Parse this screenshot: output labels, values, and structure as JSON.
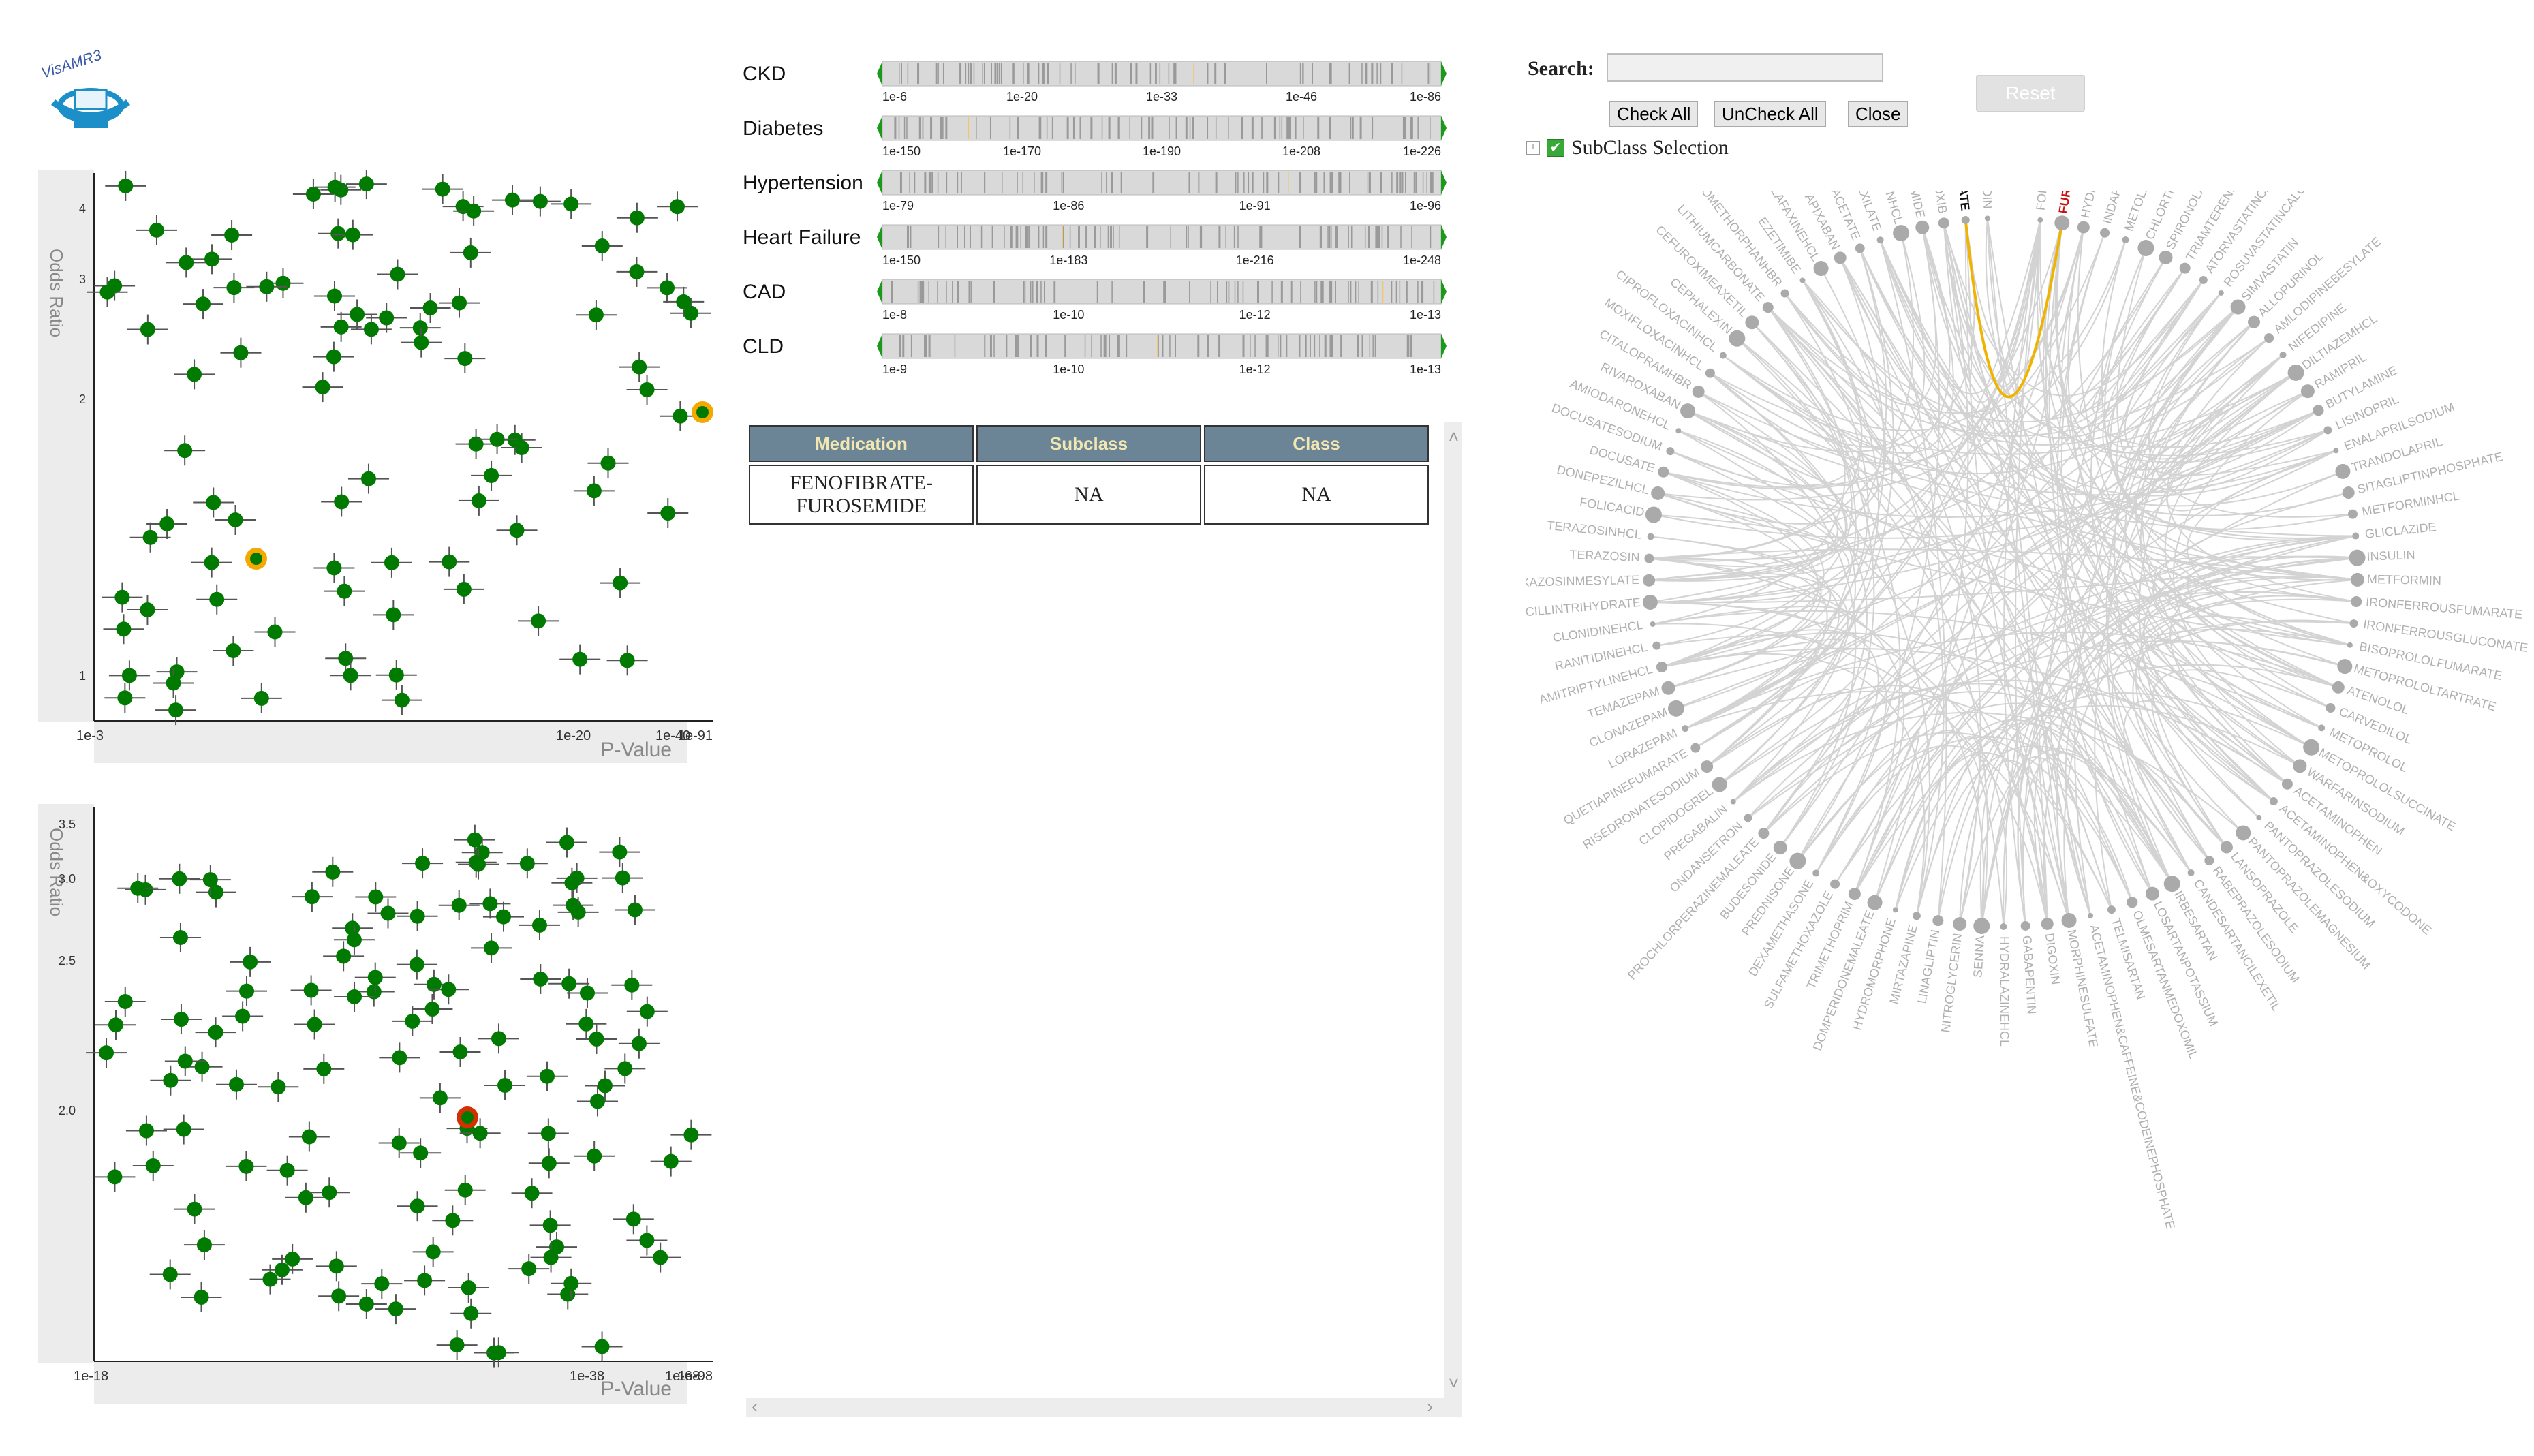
{
  "logo": {
    "text": "VisAMR3"
  },
  "scatter_top": {
    "ylabel": "Odds Ratio",
    "xlabel": "P-Value",
    "yticks": [
      "4",
      "3",
      "2",
      "1"
    ],
    "xticks": [
      "1e-3",
      "1e-20",
      "1e-40",
      "1e-91"
    ],
    "colors": {
      "point": "#007a00",
      "highlight": "#f5a800",
      "error": "#555555"
    }
  },
  "scatter_bottom": {
    "ylabel": "Odds Ratio",
    "xlabel": "P-Value",
    "yticks": [
      "3.5",
      "3.0",
      "2.5",
      "2.0"
    ],
    "xticks": [
      "1e-18",
      "1e-38",
      "1e-68",
      "1e-98"
    ],
    "colors": {
      "point": "#007a00",
      "highlight": "#d23000",
      "error": "#555555"
    }
  },
  "tracks": [
    {
      "label": "CKD",
      "ticks": [
        "1e-6",
        "1e-20",
        "1e-33",
        "1e-46",
        "1e-86"
      ]
    },
    {
      "label": "Diabetes",
      "ticks": [
        "1e-150",
        "1e-170",
        "1e-190",
        "1e-208",
        "1e-226"
      ]
    },
    {
      "label": "Hypertension",
      "ticks": [
        "1e-79",
        "1e-86",
        "1e-91",
        "1e-96"
      ]
    },
    {
      "label": "Heart Failure",
      "ticks": [
        "1e-150",
        "1e-183",
        "1e-216",
        "1e-248"
      ]
    },
    {
      "label": "CAD",
      "ticks": [
        "1e-8",
        "1e-10",
        "1e-12",
        "1e-13"
      ]
    },
    {
      "label": "CLD",
      "ticks": [
        "1e-9",
        "1e-10",
        "1e-12",
        "1e-13"
      ]
    }
  ],
  "table": {
    "headers": [
      "Medication",
      "Subclass",
      "Class"
    ],
    "row": {
      "medication": "FENOFIBRATE-FUROSEMIDE",
      "subclass": "NA",
      "class": "NA"
    }
  },
  "search": {
    "label": "Search:",
    "value": ""
  },
  "buttons": {
    "reset": "Reset",
    "check_all": "Check All",
    "uncheck_all": "UnCheck All",
    "close": "Close"
  },
  "tree": {
    "label": "SubClass Selection"
  },
  "chord": {
    "colors": {
      "link": "#d3d3d3",
      "highlight": "#f0b400",
      "node": "#aaaaaa",
      "label": "#b0b0b0",
      "selected_a": "#111111",
      "selected_b": "#cc1010"
    },
    "selected": [
      "FENOFIBRATE",
      "FUROSEMIDE"
    ],
    "labels": [
      "FORMOTEROLFUMARATE",
      "FUROSEMIDE",
      "HYDROCHLOROTHIAZIDE",
      "INDAPAMIDE",
      "METOLAZONE",
      "CHLORTHALIDONE",
      "SPIRONOLACTONE",
      "TRIAMTERENE",
      "ATORVASTATINCALCIUM",
      "ROSUVASTATINCALCIUM",
      "SIMVASTATIN",
      "ALLOPURINOL",
      "AMLODIPINEBESYLATE",
      "NIFEDIPINE",
      "DILTIAZEMHCL",
      "RAMIPRIL",
      "BUTYLAMINE",
      "LISINOPRIL",
      "ENALAPRILSODIUM",
      "TRANDOLAPRIL",
      "SITAGLIPTINPHOSPHATE",
      "METFORMINHCL",
      "GLICLAZIDE",
      "INSULIN",
      "METFORMIN",
      "IRONFERROUSFUMARATE",
      "IRONFERROUSGLUCONATE",
      "BISOPROLOLFUMARATE",
      "METOPROLOLTARTRATE",
      "ATENOLOL",
      "CARVEDILOL",
      "METOPROLOL",
      "METOPROLOLSUCCINATE",
      "WARFARINSODIUM",
      "ACETAMINOPHEN",
      "ACETAMINOPHEN&OXYCODONE",
      "PANTOPRAZOLESODIUM",
      "PANTOPRAZOLEMAGNESIUM",
      "LANSOPRAZOLE",
      "RABEPRAZOLESODIUM",
      "CANDESARTANCILEXETIL",
      "IRBESARTAN",
      "LOSARTANPOTASSIUM",
      "OLMESARTANMEDOXOMIL",
      "TELMISARTAN",
      "ACETAMINOPHEN&CAFFEINE&CODEINEPHOSPHATE",
      "MORPHINESULFATE",
      "DIGOXIN",
      "GABAPENTIN",
      "HYDRALAZINEHCL",
      "SENNA",
      "NITROGLYCERIN",
      "LINAGLIPTIN",
      "MIRTAZAPINE",
      "HYDROMORPHONE",
      "DOMPERIDONEMALEATE",
      "TRIMETHOPRIM",
      "SULFAMETHOXAZOLE",
      "DEXAMETHASONE",
      "PREDNISONE",
      "BUDESONIDE",
      "PROCHLORPERAZINEMALEATE",
      "ONDANSETRON",
      "PREGABALIN",
      "CLOPIDOGREL",
      "RISEDRONATESODIUM",
      "QUETIAPINEFUMARATE",
      "LORAZEPAM",
      "CLONAZEPAM",
      "TEMAZEPAM",
      "AMITRIPTYLINEHCL",
      "RANITIDINEHCL",
      "CLONIDINEHCL",
      "AMOXICILLINTRIHYDRATE",
      "DOXAZOSINMESYLATE",
      "TERAZOSIN",
      "TERAZOSINHCL",
      "FOLICACID",
      "DONEPEZILHCL",
      "DOCUSATE",
      "DOCUSATESODIUM",
      "AMIODARONEHCL",
      "RIVAROXABAN",
      "CITALOPRAMHBR",
      "MOXIFLOXACINHCL",
      "CIPROFLOXACINHCL",
      "CEPHALEXIN",
      "CEFUROXIMEAXETIL",
      "LITHIUMCARBONATE",
      "DEXTROMETHORPHANHBR",
      "EZETIMIBE",
      "VENLAFAXINEHCL",
      "APIXABAN",
      "ABIRATERONEACETATE",
      "DABIGATRANETEXILATE",
      "BUPROPIONHCL",
      "LOPERAMIDE",
      "CELECOXIB",
      "FENOFIBRATE",
      "NITROFURANTOIN"
    ]
  }
}
